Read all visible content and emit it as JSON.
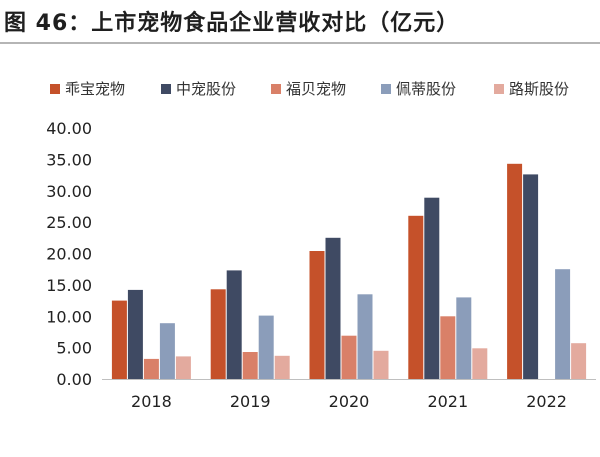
{
  "header": {
    "title": "图 46：上市宠物食品企业营收对比（亿元）"
  },
  "chart_data": {
    "type": "bar",
    "title": "图 46：上市宠物食品企业营收对比（亿元）",
    "xlabel": "",
    "ylabel": "",
    "categories": [
      "2018",
      "2019",
      "2020",
      "2021",
      "2022"
    ],
    "ylim": [
      0,
      40
    ],
    "yticks": [
      "0.00",
      "5.00",
      "10.00",
      "15.00",
      "20.00",
      "25.00",
      "30.00",
      "35.00",
      "40.00"
    ],
    "grid": false,
    "legend_position": "top",
    "series": [
      {
        "name": "乖宝宠物",
        "color": "#c5512a",
        "values": [
          12.5,
          14.3,
          20.4,
          26.0,
          34.3
        ]
      },
      {
        "name": "中宠股份",
        "color": "#3f4a63",
        "values": [
          14.2,
          17.3,
          22.5,
          28.9,
          32.6
        ]
      },
      {
        "name": "福贝宠物",
        "color": "#d98068",
        "values": [
          3.2,
          4.3,
          6.9,
          10.0,
          null
        ]
      },
      {
        "name": "佩蒂股份",
        "color": "#8b9dba",
        "values": [
          8.9,
          10.1,
          13.5,
          13.0,
          17.5
        ]
      },
      {
        "name": "路斯股份",
        "color": "#e3aa9e",
        "values": [
          3.6,
          3.7,
          4.5,
          4.9,
          5.7
        ]
      }
    ]
  }
}
